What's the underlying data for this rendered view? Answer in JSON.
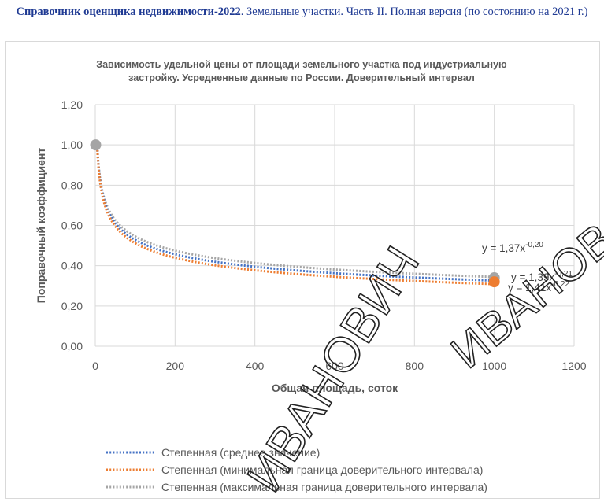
{
  "header": {
    "bold": "Справочник оценщика недвижимости-2022",
    "rest": ". Земельные участки. Часть II. Полная версия (по состоянию на 2021 г.)"
  },
  "chart_data": {
    "type": "line",
    "title": "Зависимость удельной цены от площади земельного участка под индустриальную застройку. Усредненные данные по России. Доверительный интервал",
    "xlabel": "Общая площадь, соток",
    "ylabel": "Поправочный коэффициент",
    "xlim": [
      0,
      1200
    ],
    "ylim": [
      0,
      1.2
    ],
    "xticks": [
      "0",
      "200",
      "400",
      "600",
      "800",
      "1000",
      "1200"
    ],
    "yticks": [
      "0,00",
      "0,20",
      "0,40",
      "0,60",
      "0,80",
      "1,00",
      "1,20"
    ],
    "grid": true,
    "legend_position": "bottom",
    "series": [
      {
        "name": "Степенная (среднее значение)",
        "color": "#4472c4",
        "a": 1.39,
        "b": -0.21,
        "equation": "y = 1,39x",
        "exponent": "-0,21"
      },
      {
        "name": "Степенная (минимальная граница доверительного интервала)",
        "color": "#ed7d31",
        "a": 1.41,
        "b": -0.22,
        "equation": "y = 1,41x",
        "exponent": "-0,22"
      },
      {
        "name": "Степенная (максимальная граница доверительного интервала)",
        "color": "#a5a5a5",
        "a": 1.37,
        "b": -0.2,
        "equation": "y = 1,37x",
        "exponent": "-0,20"
      }
    ],
    "points": [
      {
        "x": 1,
        "y": 1.0,
        "color": "#a5a5a5"
      },
      {
        "x": 1000,
        "y": 0.34,
        "color": "#a5a5a5"
      },
      {
        "x": 1000,
        "y": 0.32,
        "color": "#ed7d31"
      }
    ]
  },
  "watermark": "ИВАНОВИЧ ИВАНОВ"
}
